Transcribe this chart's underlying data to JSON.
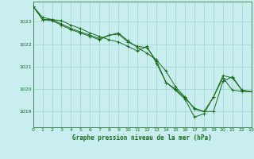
{
  "title": "Graphe pression niveau de la mer (hPa)",
  "background_color": "#c8eef0",
  "grid_color": "#b0d8da",
  "line_color": "#1a6b1a",
  "xlim": [
    0,
    23
  ],
  "ylim": [
    1018.3,
    1023.9
  ],
  "yticks": [
    1019,
    1020,
    1021,
    1022,
    1023
  ],
  "xticks": [
    0,
    1,
    2,
    3,
    4,
    5,
    6,
    7,
    8,
    9,
    10,
    11,
    12,
    13,
    14,
    15,
    16,
    17,
    18,
    19,
    20,
    21,
    22,
    23
  ],
  "series": [
    [
      1023.7,
      1023.2,
      1023.1,
      1023.05,
      1022.85,
      1022.7,
      1022.5,
      1022.35,
      1022.2,
      1022.1,
      1021.9,
      1021.7,
      1021.9,
      1021.15,
      1020.3,
      1019.95,
      1019.55,
      1018.75,
      1018.9,
      1019.65,
      1020.5,
      1019.95,
      1019.9,
      1019.88
    ],
    [
      1023.7,
      1023.1,
      1023.1,
      1022.9,
      1022.7,
      1022.55,
      1022.4,
      1022.25,
      1022.4,
      1022.5,
      1022.15,
      1021.85,
      1021.6,
      1021.3,
      1020.8,
      1020.1,
      1019.65,
      1019.1,
      1019.0,
      1019.0,
      1020.35,
      1020.55,
      1019.95,
      1019.88
    ],
    [
      1023.7,
      1023.1,
      1023.05,
      1022.85,
      1022.65,
      1022.5,
      1022.35,
      1022.2,
      1022.4,
      1022.45,
      1022.1,
      1021.9,
      1021.85,
      1021.25,
      1020.3,
      1020.0,
      1019.6,
      1019.15,
      1019.0,
      1019.65,
      1020.6,
      1020.5,
      1019.95,
      1019.88
    ]
  ]
}
